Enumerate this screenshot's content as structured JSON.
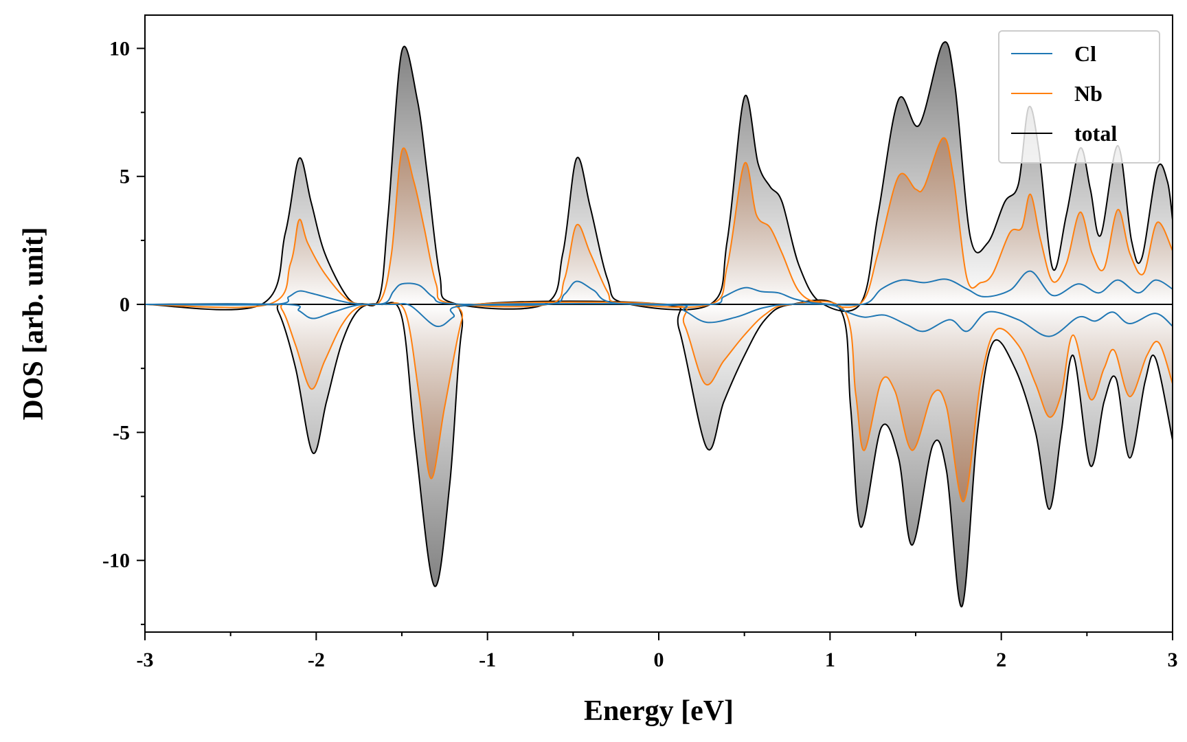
{
  "chart_data": {
    "type": "area",
    "title": "",
    "xlabel": "Energy [eV]",
    "ylabel": "DOS [arb. unit]",
    "xlim": [
      -3,
      3
    ],
    "ylim": [
      -12.8,
      11.3
    ],
    "xticks": [
      {
        "value": -3,
        "label": "-3"
      },
      {
        "value": -2,
        "label": "-2"
      },
      {
        "value": -1,
        "label": "-1"
      },
      {
        "value": 0,
        "label": "0"
      },
      {
        "value": 1,
        "label": "1"
      },
      {
        "value": 2,
        "label": "2"
      },
      {
        "value": 3,
        "label": "3"
      }
    ],
    "yticks": [
      {
        "value": -10,
        "label": "-10"
      },
      {
        "value": -5,
        "label": "-5"
      },
      {
        "value": 0,
        "label": "0"
      },
      {
        "value": 5,
        "label": "5"
      },
      {
        "value": 10,
        "label": "10"
      }
    ],
    "grid": false,
    "legend_position": "top-right",
    "series": [
      {
        "name": "Cl",
        "color": "#1f77b4",
        "up": [
          [
            -3,
            0
          ],
          [
            -2.25,
            0
          ],
          [
            -2.16,
            0.3
          ],
          [
            -2.1,
            0.52
          ],
          [
            -2.02,
            0.42
          ],
          [
            -1.85,
            0.12
          ],
          [
            -1.75,
            0.02
          ],
          [
            -1.6,
            0.05
          ],
          [
            -1.55,
            0.5
          ],
          [
            -1.5,
            0.8
          ],
          [
            -1.4,
            0.75
          ],
          [
            -1.32,
            0.3
          ],
          [
            -1.22,
            0.03
          ],
          [
            -0.65,
            0
          ],
          [
            -0.55,
            0.4
          ],
          [
            -0.48,
            0.9
          ],
          [
            -0.38,
            0.55
          ],
          [
            -0.25,
            0.05
          ],
          [
            0.3,
            0
          ],
          [
            0.38,
            0.3
          ],
          [
            0.5,
            0.65
          ],
          [
            0.6,
            0.5
          ],
          [
            0.7,
            0.45
          ],
          [
            0.8,
            0.2
          ],
          [
            0.95,
            0.03
          ],
          [
            1.2,
            0.02
          ],
          [
            1.3,
            0.6
          ],
          [
            1.42,
            0.95
          ],
          [
            1.55,
            0.85
          ],
          [
            1.68,
            0.98
          ],
          [
            1.8,
            0.6
          ],
          [
            1.9,
            0.3
          ],
          [
            2.05,
            0.55
          ],
          [
            2.17,
            1.3
          ],
          [
            2.3,
            0.35
          ],
          [
            2.45,
            0.8
          ],
          [
            2.57,
            0.45
          ],
          [
            2.68,
            0.95
          ],
          [
            2.8,
            0.45
          ],
          [
            2.9,
            0.95
          ],
          [
            3,
            0.6
          ]
        ],
        "down": [
          [
            -3,
            0
          ],
          [
            -2.18,
            0
          ],
          [
            -2.1,
            -0.25
          ],
          [
            -2.02,
            -0.55
          ],
          [
            -1.9,
            -0.3
          ],
          [
            -1.75,
            -0.02
          ],
          [
            -1.55,
            0
          ],
          [
            -1.45,
            -0.05
          ],
          [
            -1.3,
            -0.85
          ],
          [
            -1.2,
            -0.5
          ],
          [
            -1.1,
            -0.03
          ],
          [
            0.05,
            0
          ],
          [
            0.15,
            -0.25
          ],
          [
            0.28,
            -0.7
          ],
          [
            0.45,
            -0.5
          ],
          [
            0.6,
            -0.15
          ],
          [
            0.75,
            0
          ],
          [
            1,
            -0.02
          ],
          [
            1.1,
            -0.3
          ],
          [
            1.2,
            -0.5
          ],
          [
            1.32,
            -0.42
          ],
          [
            1.45,
            -0.8
          ],
          [
            1.55,
            -1.05
          ],
          [
            1.7,
            -0.6
          ],
          [
            1.8,
            -1.05
          ],
          [
            1.92,
            -0.3
          ],
          [
            2.1,
            -0.6
          ],
          [
            2.28,
            -1.25
          ],
          [
            2.45,
            -0.5
          ],
          [
            2.55,
            -0.65
          ],
          [
            2.65,
            -0.3
          ],
          [
            2.75,
            -0.75
          ],
          [
            2.9,
            -0.35
          ],
          [
            3,
            -0.85
          ]
        ]
      },
      {
        "name": "Nb",
        "color": "#ff7f0e",
        "up": [
          [
            -3,
            0
          ],
          [
            -2.28,
            0
          ],
          [
            -2.15,
            1.6
          ],
          [
            -2.1,
            3.3
          ],
          [
            -2.05,
            2.4
          ],
          [
            -1.95,
            1.2
          ],
          [
            -1.82,
            0.2
          ],
          [
            -1.72,
            0.02
          ],
          [
            -1.62,
            0.2
          ],
          [
            -1.56,
            2.0
          ],
          [
            -1.5,
            6.0
          ],
          [
            -1.43,
            4.8
          ],
          [
            -1.37,
            3.0
          ],
          [
            -1.3,
            0.8
          ],
          [
            -1.22,
            0.05
          ],
          [
            -0.65,
            0
          ],
          [
            -0.55,
            1.0
          ],
          [
            -0.48,
            3.1
          ],
          [
            -0.4,
            2.0
          ],
          [
            -0.3,
            0.5
          ],
          [
            -0.22,
            0.05
          ],
          [
            0.3,
            0
          ],
          [
            0.4,
            1.5
          ],
          [
            0.5,
            5.5
          ],
          [
            0.57,
            3.5
          ],
          [
            0.65,
            3.0
          ],
          [
            0.72,
            2.0
          ],
          [
            0.82,
            0.5
          ],
          [
            0.95,
            0.05
          ],
          [
            1.18,
            0.05
          ],
          [
            1.28,
            2.0
          ],
          [
            1.4,
            5.0
          ],
          [
            1.5,
            4.5
          ],
          [
            1.55,
            4.6
          ],
          [
            1.66,
            6.5
          ],
          [
            1.72,
            5.0
          ],
          [
            1.8,
            1.0
          ],
          [
            1.88,
            0.85
          ],
          [
            1.95,
            1.2
          ],
          [
            2.05,
            2.8
          ],
          [
            2.12,
            3.0
          ],
          [
            2.17,
            4.3
          ],
          [
            2.23,
            2.5
          ],
          [
            2.3,
            0.9
          ],
          [
            2.38,
            1.6
          ],
          [
            2.46,
            3.6
          ],
          [
            2.53,
            2.0
          ],
          [
            2.6,
            1.4
          ],
          [
            2.68,
            3.7
          ],
          [
            2.75,
            2.0
          ],
          [
            2.83,
            1.2
          ],
          [
            2.91,
            3.2
          ],
          [
            3,
            2.1
          ]
        ],
        "down": [
          [
            -3,
            0
          ],
          [
            -2.28,
            0
          ],
          [
            -2.2,
            -0.2
          ],
          [
            -2.12,
            -1.6
          ],
          [
            -2.03,
            -3.3
          ],
          [
            -1.95,
            -2.2
          ],
          [
            -1.85,
            -0.8
          ],
          [
            -1.75,
            -0.1
          ],
          [
            -1.6,
            0
          ],
          [
            -1.48,
            -0.3
          ],
          [
            -1.4,
            -3.5
          ],
          [
            -1.33,
            -6.8
          ],
          [
            -1.25,
            -4.0
          ],
          [
            -1.15,
            -0.6
          ],
          [
            -1.08,
            0
          ],
          [
            0.05,
            0
          ],
          [
            0.15,
            -0.8
          ],
          [
            0.27,
            -3.1
          ],
          [
            0.38,
            -2.2
          ],
          [
            0.5,
            -1.2
          ],
          [
            0.62,
            -0.4
          ],
          [
            0.75,
            -0.02
          ],
          [
            1.08,
            -0.2
          ],
          [
            1.15,
            -3.5
          ],
          [
            1.2,
            -5.7
          ],
          [
            1.3,
            -3.0
          ],
          [
            1.38,
            -3.4
          ],
          [
            1.48,
            -5.7
          ],
          [
            1.6,
            -3.5
          ],
          [
            1.68,
            -4.0
          ],
          [
            1.78,
            -7.7
          ],
          [
            1.88,
            -3.0
          ],
          [
            1.97,
            -1.0
          ],
          [
            2.1,
            -1.6
          ],
          [
            2.2,
            -3.1
          ],
          [
            2.28,
            -4.4
          ],
          [
            2.35,
            -3.5
          ],
          [
            2.42,
            -1.2
          ],
          [
            2.52,
            -3.7
          ],
          [
            2.6,
            -2.5
          ],
          [
            2.66,
            -1.8
          ],
          [
            2.75,
            -3.6
          ],
          [
            2.85,
            -2.0
          ],
          [
            2.92,
            -1.5
          ],
          [
            3,
            -3.1
          ]
        ]
      },
      {
        "name": "total",
        "color": "#000000",
        "up": [
          [
            -3,
            0
          ],
          [
            -2.32,
            0
          ],
          [
            -2.18,
            2.8
          ],
          [
            -2.1,
            5.7
          ],
          [
            -2.03,
            4.0
          ],
          [
            -1.95,
            2.0
          ],
          [
            -1.82,
            0.3
          ],
          [
            -1.73,
            0.03
          ],
          [
            -1.63,
            0.3
          ],
          [
            -1.58,
            3.5
          ],
          [
            -1.5,
            9.9
          ],
          [
            -1.41,
            8.0
          ],
          [
            -1.35,
            5.0
          ],
          [
            -1.28,
            1.2
          ],
          [
            -1.2,
            0.05
          ],
          [
            -0.67,
            0
          ],
          [
            -0.56,
            2.0
          ],
          [
            -0.48,
            5.7
          ],
          [
            -0.4,
            3.8
          ],
          [
            -0.3,
            1.0
          ],
          [
            -0.2,
            0.05
          ],
          [
            0.3,
            0
          ],
          [
            0.4,
            2.5
          ],
          [
            0.5,
            8.1
          ],
          [
            0.58,
            5.5
          ],
          [
            0.65,
            4.6
          ],
          [
            0.72,
            4.0
          ],
          [
            0.82,
            1.5
          ],
          [
            0.95,
            0.05
          ],
          [
            1.18,
            0.05
          ],
          [
            1.28,
            3.5
          ],
          [
            1.4,
            8.0
          ],
          [
            1.52,
            7.0
          ],
          [
            1.66,
            10.2
          ],
          [
            1.73,
            8.5
          ],
          [
            1.82,
            2.6
          ],
          [
            1.92,
            2.4
          ],
          [
            2.02,
            4.0
          ],
          [
            2.1,
            4.7
          ],
          [
            2.16,
            7.7
          ],
          [
            2.22,
            6.0
          ],
          [
            2.3,
            1.4
          ],
          [
            2.38,
            3.5
          ],
          [
            2.46,
            6.1
          ],
          [
            2.52,
            4.5
          ],
          [
            2.58,
            2.7
          ],
          [
            2.68,
            6.2
          ],
          [
            2.76,
            2.5
          ],
          [
            2.82,
            1.8
          ],
          [
            2.91,
            5.3
          ],
          [
            2.97,
            4.8
          ],
          [
            3,
            3.3
          ]
        ],
        "down": [
          [
            -3,
            0
          ],
          [
            -2.3,
            0
          ],
          [
            -2.22,
            -0.3
          ],
          [
            -2.12,
            -2.5
          ],
          [
            -2.02,
            -5.8
          ],
          [
            -1.94,
            -3.8
          ],
          [
            -1.85,
            -1.5
          ],
          [
            -1.75,
            -0.2
          ],
          [
            -1.62,
            0
          ],
          [
            -1.5,
            -0.5
          ],
          [
            -1.42,
            -5.5
          ],
          [
            -1.31,
            -11.0
          ],
          [
            -1.22,
            -7.0
          ],
          [
            -1.15,
            -1.0
          ],
          [
            -1.06,
            0
          ],
          [
            0.02,
            0
          ],
          [
            0.12,
            -1.0
          ],
          [
            0.28,
            -5.6
          ],
          [
            0.38,
            -3.8
          ],
          [
            0.5,
            -2.0
          ],
          [
            0.62,
            -0.6
          ],
          [
            0.76,
            -0.02
          ],
          [
            1.06,
            -0.2
          ],
          [
            1.12,
            -4.0
          ],
          [
            1.18,
            -8.7
          ],
          [
            1.3,
            -4.8
          ],
          [
            1.4,
            -6.0
          ],
          [
            1.48,
            -9.4
          ],
          [
            1.6,
            -5.5
          ],
          [
            1.68,
            -6.5
          ],
          [
            1.77,
            -11.8
          ],
          [
            1.86,
            -5.0
          ],
          [
            1.95,
            -1.5
          ],
          [
            2.08,
            -2.5
          ],
          [
            2.2,
            -5.0
          ],
          [
            2.28,
            -8.0
          ],
          [
            2.35,
            -5.0
          ],
          [
            2.42,
            -2.0
          ],
          [
            2.52,
            -6.3
          ],
          [
            2.6,
            -3.8
          ],
          [
            2.67,
            -2.9
          ],
          [
            2.75,
            -6.0
          ],
          [
            2.84,
            -3.0
          ],
          [
            2.9,
            -2.1
          ],
          [
            3,
            -5.3
          ]
        ]
      }
    ]
  }
}
